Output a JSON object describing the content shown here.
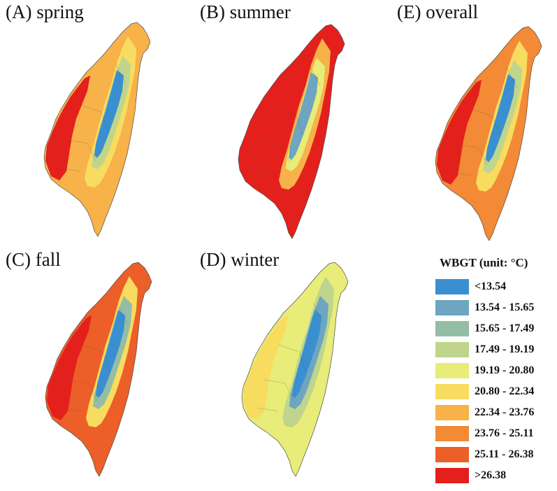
{
  "panels": [
    {
      "id": "spring",
      "label": "(A) spring",
      "scheme": "spring"
    },
    {
      "id": "summer",
      "label": "(B) summer",
      "scheme": "summer"
    },
    {
      "id": "overall",
      "label": "(E) overall",
      "scheme": "overall"
    },
    {
      "id": "fall",
      "label": "(C) fall",
      "scheme": "fall"
    },
    {
      "id": "winter",
      "label": "(D) winter",
      "scheme": "winter"
    }
  ],
  "legend": {
    "title": "WBGT (unit: °C)",
    "classes": [
      {
        "label": "<13.54",
        "color": "#3a8fd0"
      },
      {
        "label": "13.54 - 15.65",
        "color": "#6ea5c0"
      },
      {
        "label": "15.65 - 17.49",
        "color": "#94bda5"
      },
      {
        "label": "17.49 - 19.19",
        "color": "#bfd58d"
      },
      {
        "label": "19.19 - 20.80",
        "color": "#e8ec78"
      },
      {
        "label": "20.80 - 22.34",
        "color": "#f8dc60"
      },
      {
        "label": "22.34 - 23.76",
        "color": "#f7b24a"
      },
      {
        "label": "23.76 - 25.11",
        "color": "#f28a36"
      },
      {
        "label": "25.11 - 26.38",
        "color": "#ec5f28"
      },
      {
        "label": ">26.38",
        "color": "#e4201c"
      }
    ]
  }
}
